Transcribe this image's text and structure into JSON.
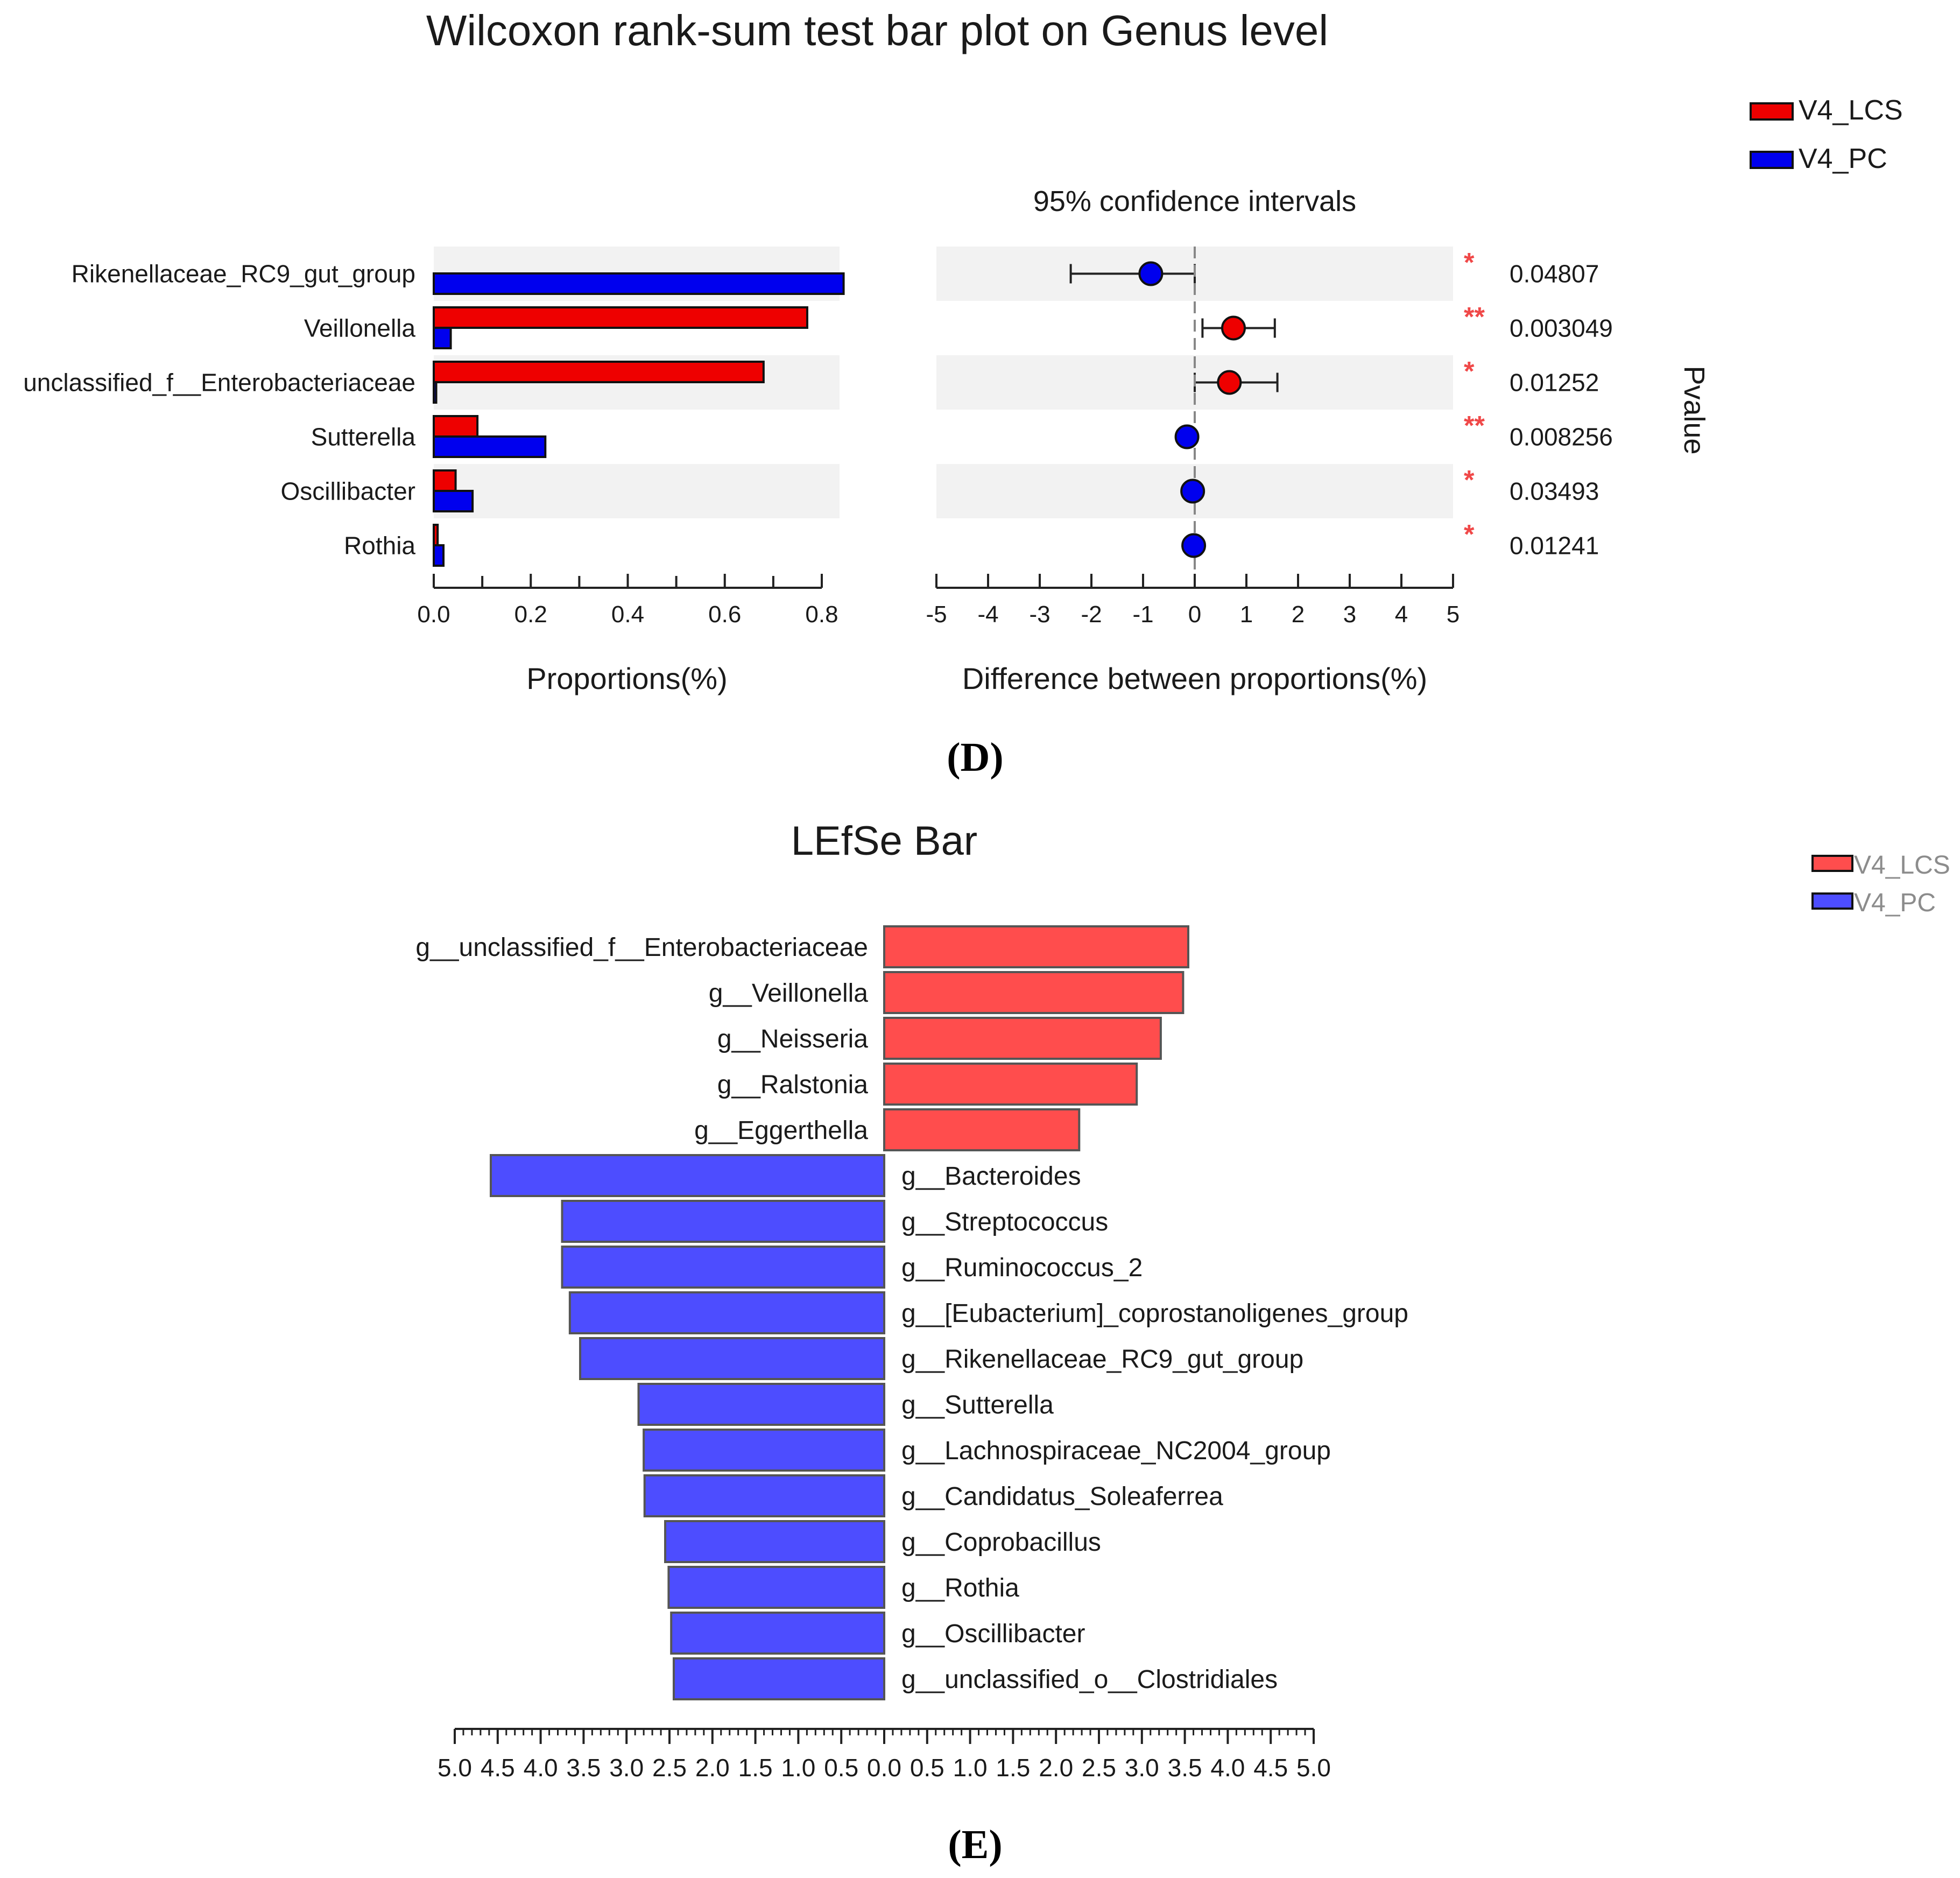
{
  "chart_data": [
    {
      "id": "D",
      "type": "bar",
      "title": "Wilcoxon rank-sum test bar plot on Genus level",
      "panel_label": "(D)",
      "legend": [
        {
          "name": "V4_LCS",
          "color": "#ee0000"
        },
        {
          "name": "V4_PC",
          "color": "#0000ee"
        }
      ],
      "categories": [
        "Rikenellaceae_RC9_gut_group",
        "Veillonella",
        "unclassified_f__Enterobacteriaceae",
        "Sutterella",
        "Oscillibacter",
        "Rothia"
      ],
      "series": [
        {
          "name": "V4_LCS",
          "values": [
            0.0,
            0.77,
            0.68,
            0.09,
            0.045,
            0.008
          ]
        },
        {
          "name": "V4_PC",
          "values": [
            0.845,
            0.035,
            0.005,
            0.23,
            0.08,
            0.02
          ]
        }
      ],
      "xlabel": "Proportions(%)",
      "xlim": [
        0,
        0.85
      ],
      "xticks": [
        "0.0",
        "0.2",
        "0.4",
        "0.6",
        "0.8"
      ],
      "ci": {
        "title": "95% confidence intervals",
        "xlabel": "Difference between proportions(%)",
        "xlim": [
          -5,
          5
        ],
        "xticks": [
          "-5",
          "-4",
          "-3",
          "-2",
          "-1",
          "0",
          "1",
          "2",
          "3",
          "4",
          "5"
        ],
        "points": [
          {
            "estimate": -0.85,
            "low": -2.4,
            "high": 0.0,
            "group": "V4_PC",
            "stars": "*",
            "pvalue": "0.04807"
          },
          {
            "estimate": 0.75,
            "low": 0.15,
            "high": 1.55,
            "group": "V4_LCS",
            "stars": "**",
            "pvalue": "0.003049"
          },
          {
            "estimate": 0.67,
            "low": 0.0,
            "high": 1.6,
            "group": "V4_LCS",
            "stars": "*",
            "pvalue": "0.01252"
          },
          {
            "estimate": -0.15,
            "low": -0.25,
            "high": -0.05,
            "group": "V4_PC",
            "stars": "**",
            "pvalue": "0.008256"
          },
          {
            "estimate": -0.04,
            "low": -0.1,
            "high": 0.02,
            "group": "V4_PC",
            "stars": "*",
            "pvalue": "0.03493"
          },
          {
            "estimate": -0.02,
            "low": -0.05,
            "high": 0.01,
            "group": "V4_PC",
            "stars": "*",
            "pvalue": "0.01241"
          }
        ],
        "pvalue_label": "Pvalue"
      }
    },
    {
      "id": "E",
      "type": "bar",
      "title": "LEfSe Bar",
      "panel_label": "(E)",
      "legend": [
        {
          "name": "V4_LCS",
          "color": "#ff4d4d"
        },
        {
          "name": "V4_PC",
          "color": "#4d4dff"
        }
      ],
      "xlim": [
        -5,
        5
      ],
      "xticks": [
        "5.0",
        "4.5",
        "4.0",
        "3.5",
        "3.0",
        "2.5",
        "2.0",
        "1.5",
        "1.0",
        "0.5",
        "0.0",
        "0.5",
        "1.0",
        "1.5",
        "2.0",
        "2.5",
        "3.0",
        "3.5",
        "4.0",
        "4.5",
        "5.0"
      ],
      "bars": [
        {
          "label": "g__unclassified_f__Enterobacteriaceae",
          "value": 3.54,
          "group": "V4_LCS"
        },
        {
          "label": "g__Veillonella",
          "value": 3.48,
          "group": "V4_LCS"
        },
        {
          "label": "g__Neisseria",
          "value": 3.22,
          "group": "V4_LCS"
        },
        {
          "label": "g__Ralstonia",
          "value": 2.94,
          "group": "V4_LCS"
        },
        {
          "label": "g__Eggerthella",
          "value": 2.27,
          "group": "V4_LCS"
        },
        {
          "label": "g__Bacteroides",
          "value": 4.58,
          "group": "V4_PC"
        },
        {
          "label": "g__Streptococcus",
          "value": 3.75,
          "group": "V4_PC"
        },
        {
          "label": "g__Ruminococcus_2",
          "value": 3.75,
          "group": "V4_PC"
        },
        {
          "label": "g__[Eubacterium]_coprostanoligenes_group",
          "value": 3.66,
          "group": "V4_PC"
        },
        {
          "label": "g__Rikenellaceae_RC9_gut_group",
          "value": 3.54,
          "group": "V4_PC"
        },
        {
          "label": "g__Sutterella",
          "value": 2.86,
          "group": "V4_PC"
        },
        {
          "label": "g__Lachnospiraceae_NC2004_group",
          "value": 2.8,
          "group": "V4_PC"
        },
        {
          "label": "g__Candidatus_Soleaferrea",
          "value": 2.79,
          "group": "V4_PC"
        },
        {
          "label": "g__Coprobacillus",
          "value": 2.55,
          "group": "V4_PC"
        },
        {
          "label": "g__Rothia",
          "value": 2.51,
          "group": "V4_PC"
        },
        {
          "label": "g__Oscillibacter",
          "value": 2.48,
          "group": "V4_PC"
        },
        {
          "label": "g__unclassified_o__Clostridiales",
          "value": 2.45,
          "group": "V4_PC"
        }
      ]
    }
  ]
}
